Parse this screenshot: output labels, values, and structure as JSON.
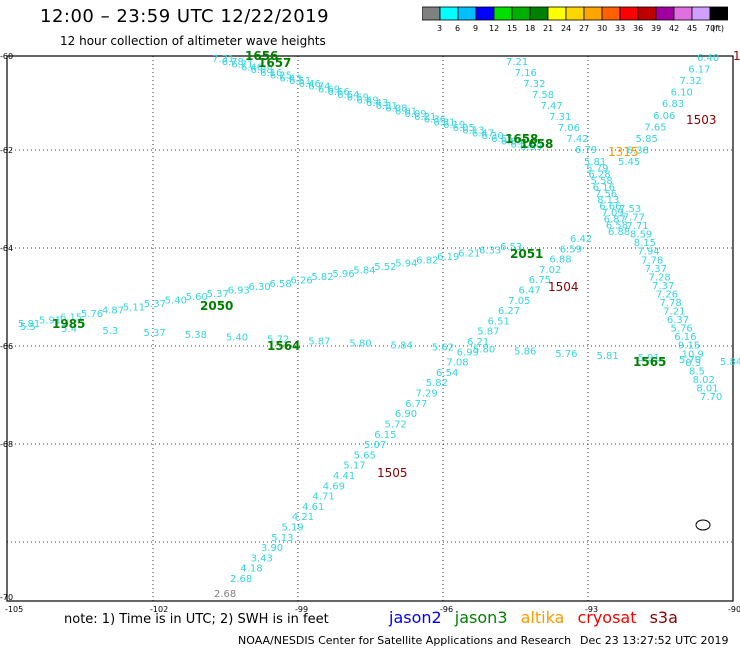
{
  "header": {
    "title": "12:00 – 23:59 UTC 12/22/2019",
    "subtitle": "12 hour collection of altimeter wave heights"
  },
  "scale": {
    "unit_label": "(ft)",
    "ticks": [
      "3",
      "6",
      "9",
      "12",
      "15",
      "18",
      "21",
      "24",
      "27",
      "30",
      "33",
      "36",
      "39",
      "42",
      "45",
      "70"
    ],
    "colors": [
      "#808080",
      "#00ffff",
      "#00bfff",
      "#0000ff",
      "#00e000",
      "#00b000",
      "#008000",
      "#ffff00",
      "#ffd700",
      "#ffa500",
      "#ff6000",
      "#ff0000",
      "#c00000",
      "#a000a0",
      "#e070e0",
      "#d0a0ff",
      "#000000"
    ]
  },
  "axes": {
    "x_ticks": [
      "-105",
      "-102",
      "-99",
      "-96",
      "-93",
      "-90"
    ],
    "y_ticks": [
      "-60",
      "-62",
      "-64",
      "-66",
      "-68",
      "-70"
    ]
  },
  "colors": {
    "swh": "#35d5e0",
    "jason3_time": "#008000",
    "cryosat_time": "#8b0000",
    "altika_time": "#ff9900",
    "grey": "#808080"
  },
  "tracks": {
    "topleft_upper": [
      "7.31",
      "6.78",
      "6.71",
      "6.46",
      "6.08",
      "6.16",
      "6.25",
      "6.43",
      "6.51",
      "6.46",
      "6.74",
      "6.69",
      "6.66",
      "6.64",
      "6.59",
      "6.49",
      "6.43",
      "6.31",
      "6.08",
      "6.01",
      "6.09",
      "6.21",
      "6.36",
      "6.31",
      "6.19",
      "6.05",
      "6.13",
      "6.47",
      "6.30",
      "6.65",
      "6.65",
      "6.52",
      "6.59"
    ],
    "diag_down": [
      "7.21",
      "7.16",
      "7.32",
      "7.58",
      "7.47",
      "7.31",
      "7.06",
      "7.42",
      "6.79"
    ],
    "right_col": [
      "6.40",
      "6.17",
      "7.32",
      "6.10",
      "6.83",
      "6.06",
      "7.65",
      "5.85",
      "6.38",
      "5.45"
    ],
    "mid_cluster": [
      "5.81",
      "5.79",
      "6.28",
      "5.58",
      "6.16",
      "7.56",
      "8.13",
      "6.66",
      "7.09",
      "6.87",
      "6.58",
      "6.88"
    ],
    "ascending": [
      "2.68",
      "4.18",
      "3.43",
      "3.90",
      "5.13",
      "5.19",
      "4.21",
      "4.61",
      "4.71",
      "4.69",
      "4.41",
      "5.17",
      "5.65",
      "5.07",
      "6.15",
      "5.72",
      "6.90",
      "6.77",
      "7.29",
      "5.82",
      "6.54",
      "7.08",
      "6.99",
      "6.21",
      "5.87",
      "6.51",
      "6.27",
      "7.05",
      "6.47",
      "6.75",
      "7.02",
      "6.88",
      "6.59",
      "6.42"
    ],
    "left_upper": [
      "5.81",
      "5.91",
      "6.15",
      "5.76",
      "4.87",
      "5.11",
      "5.37",
      "5.40",
      "5.60",
      "5.37",
      "6.93",
      "6.30",
      "6.58",
      "6.26",
      "5.82",
      "5.96",
      "5.84",
      "5.52",
      "5.94",
      "6.82",
      "6.19",
      "6.21",
      "6.33",
      "6.53"
    ],
    "lower_band": [
      "5.5",
      "5.4",
      "5.3",
      "5.37",
      "5.38",
      "5.40",
      "5.72",
      "5.87",
      "5.80",
      "5.84",
      "5.62",
      "5.80",
      "5.86",
      "5.76",
      "5.81",
      "5.91",
      "5.70",
      "5.84"
    ],
    "right_lower": [
      "7.53",
      "7.77",
      "7.71",
      "8.59",
      "8.15",
      "7.94",
      "7.78",
      "7.37",
      "7.28",
      "7.37",
      "7.26",
      "7.78",
      "7.21",
      "6.37",
      "5.76",
      "6.16",
      "9.15",
      "10.9",
      "8.3",
      "8.5",
      "8.02",
      "8.01",
      "7.70"
    ]
  },
  "times": {
    "jason3": [
      "1656",
      "1657",
      "1658",
      "1658",
      "2051",
      "2050",
      "1985",
      "1564",
      "1565"
    ],
    "cryosat": [
      "1503",
      "1504",
      "1505",
      "1"
    ],
    "altika": [
      "1315"
    ]
  },
  "footer": {
    "note": "note: 1) Time is in UTC; 2) SWH is in feet",
    "legend": [
      {
        "label": "jason2",
        "color": "#0000ff"
      },
      {
        "label": "jason3",
        "color": "#008000"
      },
      {
        "label": "altika",
        "color": "#ff9900"
      },
      {
        "label": "cryosat",
        "color": "#ff0000"
      },
      {
        "label": "s3a",
        "color": "#8b0000"
      }
    ],
    "credit": "NOAA/NESDIS Center for Satellite Applications and Research",
    "stamp": "Dec 23 13:27:52 UTC 2019"
  }
}
